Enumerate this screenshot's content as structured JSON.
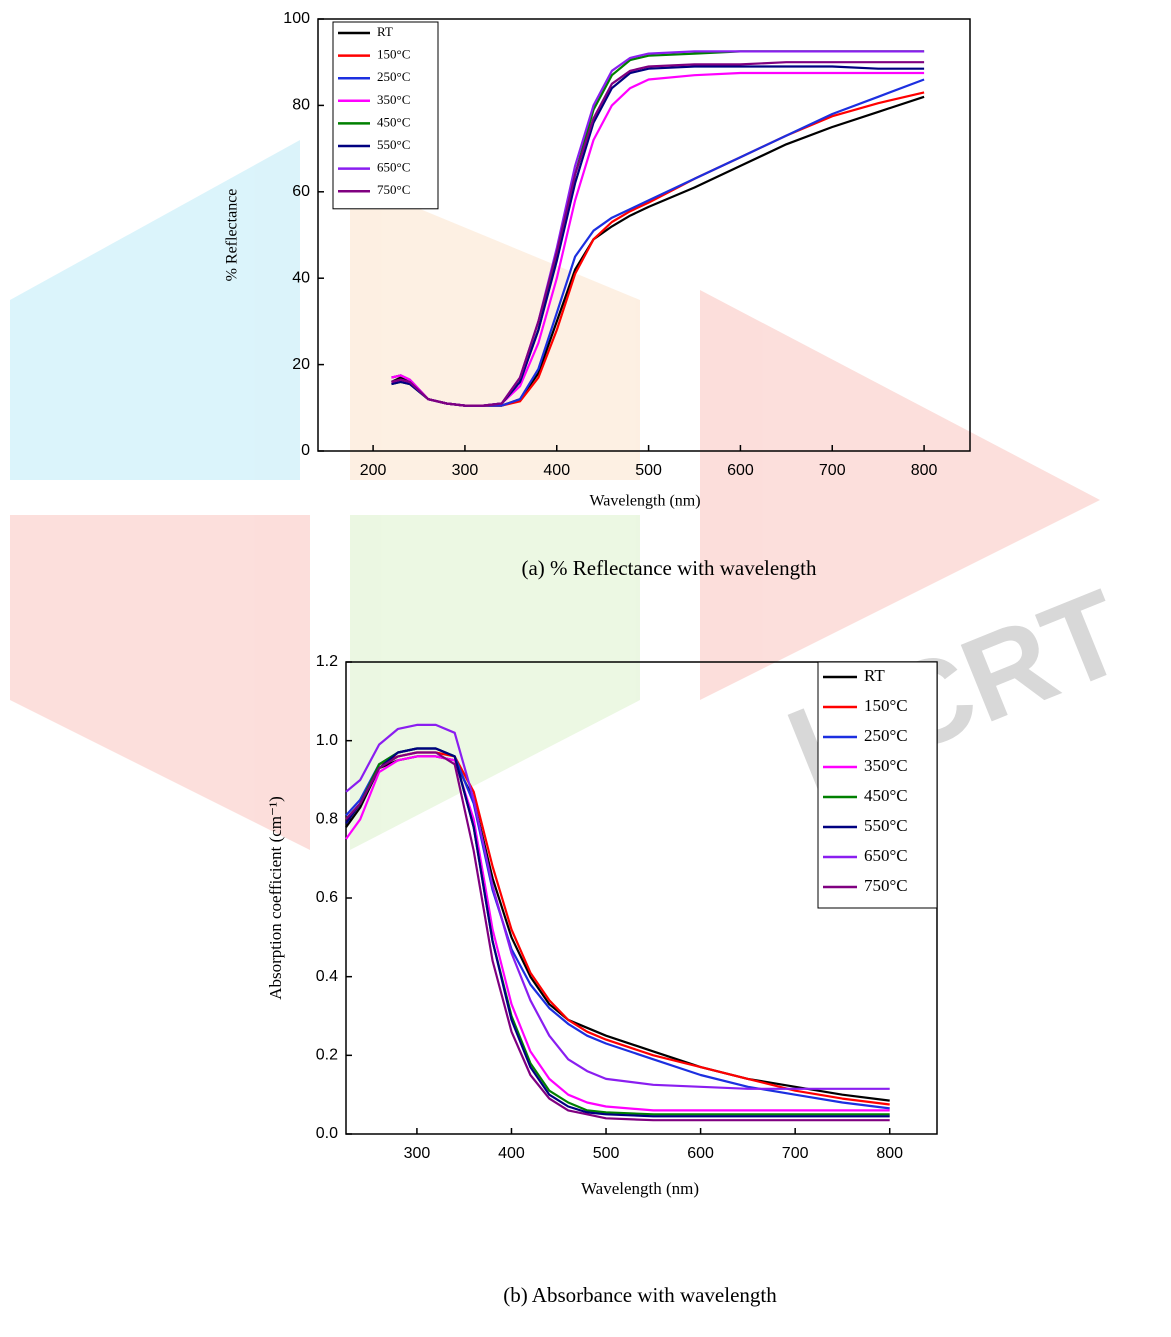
{
  "watermark": "IJCRT",
  "chart_data": [
    {
      "type": "line",
      "caption": "(a) % Reflectance with wavelength",
      "x_label": "Wavelength (nm)",
      "y_label": "% Reflectance",
      "x": [
        220,
        230,
        240,
        260,
        280,
        300,
        320,
        340,
        360,
        380,
        400,
        420,
        440,
        460,
        480,
        500,
        550,
        600,
        650,
        700,
        750,
        800
      ],
      "xlim": [
        140,
        850
      ],
      "ylim": [
        0,
        100
      ],
      "xticks": [
        200,
        300,
        400,
        500,
        600,
        700,
        800
      ],
      "yticks": [
        0,
        20,
        40,
        60,
        80,
        100
      ],
      "legend": "upper-left",
      "series": [
        {
          "name": "RT",
          "color": "#000000",
          "values": [
            16,
            17,
            16,
            12,
            11,
            10.5,
            10.5,
            10.5,
            12,
            18,
            30,
            42,
            49,
            52,
            54.5,
            56.5,
            61,
            66,
            71,
            75,
            78.5,
            82
          ]
        },
        {
          "name": "150°C",
          "color": "#ff0000",
          "values": [
            17,
            17.5,
            16.5,
            12,
            11,
            10.5,
            10.5,
            10.5,
            11.5,
            17,
            28,
            41,
            49,
            53,
            55.5,
            57.5,
            63,
            68,
            73,
            77.5,
            80.5,
            83
          ]
        },
        {
          "name": "250°C",
          "color": "#1c2fe0",
          "values": [
            17,
            17.5,
            16.5,
            12,
            11,
            10.5,
            10.5,
            10.5,
            12,
            19,
            32,
            45,
            51,
            54,
            56,
            58,
            63,
            68,
            73,
            78,
            82,
            86
          ]
        },
        {
          "name": "350°C",
          "color": "#ff00ff",
          "values": [
            17,
            17.5,
            16.5,
            12,
            11,
            10.5,
            10.5,
            11,
            15,
            25,
            40,
            58,
            72,
            80,
            84,
            86,
            87,
            87.5,
            87.5,
            87.5,
            87.5,
            87.5
          ]
        },
        {
          "name": "450°C",
          "color": "#008000",
          "values": [
            15.5,
            16,
            15.5,
            12,
            11,
            10.5,
            10.5,
            11,
            16,
            28,
            45,
            64,
            79,
            87,
            90.5,
            91.5,
            92,
            92.5,
            92.5,
            92.5,
            92.5,
            92.5
          ]
        },
        {
          "name": "550°C",
          "color": "#000080",
          "values": [
            15.5,
            16,
            15.5,
            12,
            11,
            10.5,
            10.5,
            11,
            16,
            28,
            44,
            62,
            76,
            84,
            87.5,
            88.5,
            89,
            89,
            89,
            89,
            88.5,
            88.5
          ]
        },
        {
          "name": "650°C",
          "color": "#8a1ef0",
          "values": [
            16,
            16.5,
            16,
            12,
            11,
            10.5,
            10.5,
            11,
            17,
            30,
            47,
            66,
            80,
            88,
            91,
            92,
            92.5,
            92.5,
            92.5,
            92.5,
            92.5,
            92.5
          ]
        },
        {
          "name": "750°C",
          "color": "#800080",
          "values": [
            16,
            16.5,
            16,
            12,
            11,
            10.5,
            10.5,
            11,
            17,
            30,
            46,
            64,
            77,
            85,
            88,
            89,
            89.5,
            89.5,
            90,
            90,
            90,
            90
          ]
        }
      ]
    },
    {
      "type": "line",
      "caption": "(b) Absorbance with wavelength",
      "x_label": "Wavelength (nm)",
      "y_label": "Absorption coefficient (cm⁻¹)",
      "x": [
        225,
        240,
        260,
        280,
        300,
        320,
        340,
        360,
        380,
        400,
        420,
        440,
        460,
        480,
        500,
        550,
        600,
        650,
        700,
        750,
        800
      ],
      "xlim": [
        225,
        850
      ],
      "ylim": [
        0,
        1.2
      ],
      "xticks": [
        300,
        400,
        500,
        600,
        700,
        800
      ],
      "yticks": [
        {
          "value": 0,
          "label": "0.0"
        },
        0.2,
        0.4,
        0.6,
        0.8,
        {
          "value": 1,
          "label": "1.0"
        },
        1.2
      ],
      "legend": "upper-right",
      "series": [
        {
          "name": "RT",
          "color": "#000000",
          "values": [
            0.78,
            0.83,
            0.93,
            0.95,
            0.96,
            0.96,
            0.95,
            0.85,
            0.65,
            0.5,
            0.4,
            0.33,
            0.29,
            0.27,
            0.25,
            0.21,
            0.17,
            0.14,
            0.12,
            0.1,
            0.085
          ]
        },
        {
          "name": "150°C",
          "color": "#ff0000",
          "values": [
            0.8,
            0.84,
            0.94,
            0.96,
            0.97,
            0.97,
            0.96,
            0.87,
            0.68,
            0.52,
            0.41,
            0.34,
            0.29,
            0.26,
            0.24,
            0.2,
            0.17,
            0.14,
            0.11,
            0.09,
            0.075
          ]
        },
        {
          "name": "250°C",
          "color": "#1c2fe0",
          "values": [
            0.81,
            0.85,
            0.94,
            0.97,
            0.98,
            0.98,
            0.96,
            0.84,
            0.62,
            0.47,
            0.38,
            0.32,
            0.28,
            0.25,
            0.23,
            0.19,
            0.15,
            0.12,
            0.1,
            0.08,
            0.065
          ]
        },
        {
          "name": "350°C",
          "color": "#ff00ff",
          "values": [
            0.75,
            0.8,
            0.92,
            0.95,
            0.96,
            0.96,
            0.95,
            0.8,
            0.52,
            0.33,
            0.21,
            0.14,
            0.1,
            0.08,
            0.07,
            0.06,
            0.06,
            0.06,
            0.06,
            0.06,
            0.06
          ]
        },
        {
          "name": "450°C",
          "color": "#008000",
          "values": [
            0.8,
            0.84,
            0.94,
            0.97,
            0.98,
            0.98,
            0.96,
            0.78,
            0.49,
            0.3,
            0.18,
            0.11,
            0.08,
            0.06,
            0.055,
            0.05,
            0.05,
            0.05,
            0.05,
            0.05,
            0.05
          ]
        },
        {
          "name": "550°C",
          "color": "#000080",
          "values": [
            0.79,
            0.84,
            0.93,
            0.97,
            0.98,
            0.98,
            0.96,
            0.78,
            0.49,
            0.29,
            0.17,
            0.1,
            0.07,
            0.055,
            0.05,
            0.045,
            0.045,
            0.045,
            0.045,
            0.045,
            0.045
          ]
        },
        {
          "name": "650°C",
          "color": "#8a1ef0",
          "values": [
            0.87,
            0.9,
            0.99,
            1.03,
            1.04,
            1.04,
            1.02,
            0.85,
            0.63,
            0.46,
            0.34,
            0.25,
            0.19,
            0.16,
            0.14,
            0.125,
            0.12,
            0.115,
            0.115,
            0.115,
            0.115
          ]
        },
        {
          "name": "750°C",
          "color": "#800080",
          "values": [
            0.8,
            0.84,
            0.93,
            0.96,
            0.97,
            0.97,
            0.94,
            0.72,
            0.44,
            0.26,
            0.15,
            0.09,
            0.06,
            0.05,
            0.04,
            0.035,
            0.035,
            0.035,
            0.035,
            0.035,
            0.035
          ]
        }
      ]
    }
  ]
}
